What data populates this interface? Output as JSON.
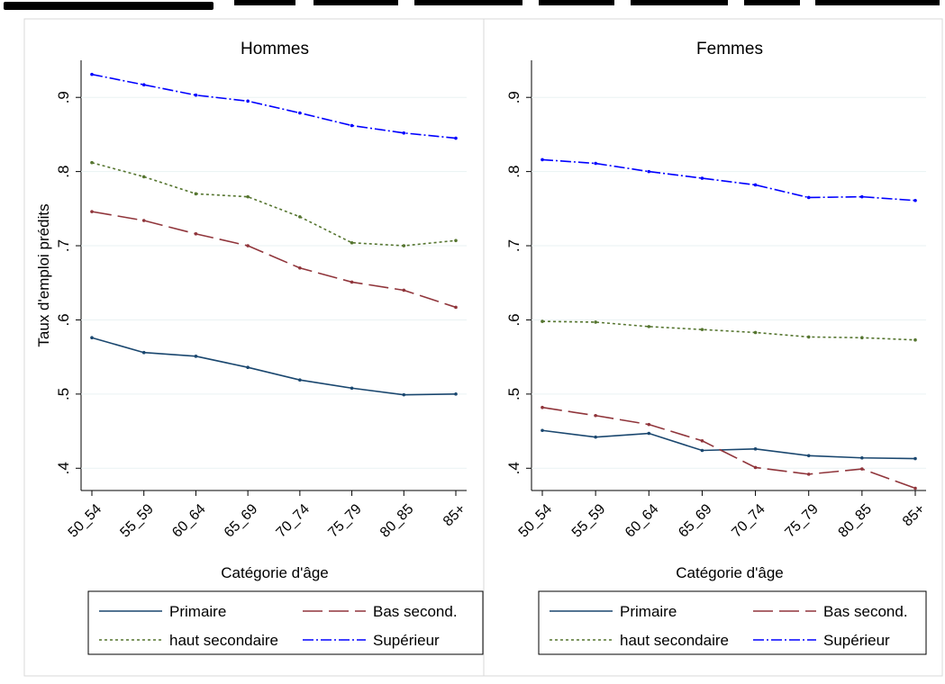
{
  "chart_data": [
    {
      "type": "line",
      "title": "Hommes",
      "xlabel": "Catégorie d'âge",
      "ylabel": "Taux d'emploi prédits",
      "categories": [
        "50_54",
        "55_59",
        "60_64",
        "65_69",
        "70_74",
        "75_79",
        "80_85",
        "85+"
      ],
      "yticks": [
        ".4",
        ".5",
        ".6",
        ".7",
        ".8",
        ".9"
      ],
      "ylim": [
        0.37,
        0.95
      ],
      "grid": true,
      "series": [
        {
          "name": "Primaire",
          "values": [
            0.576,
            0.556,
            0.551,
            0.536,
            0.519,
            0.508,
            0.499,
            0.5
          ]
        },
        {
          "name": "Bas second.",
          "values": [
            0.746,
            0.734,
            0.716,
            0.7,
            0.67,
            0.651,
            0.64,
            0.617
          ]
        },
        {
          "name": "haut secondaire",
          "values": [
            0.812,
            0.793,
            0.77,
            0.766,
            0.739,
            0.704,
            0.7,
            0.707
          ]
        },
        {
          "name": "Supérieur",
          "values": [
            0.931,
            0.917,
            0.903,
            0.895,
            0.879,
            0.862,
            0.852,
            0.845
          ]
        }
      ]
    },
    {
      "type": "line",
      "title": "Femmes",
      "xlabel": "Catégorie d'âge",
      "ylabel": "",
      "categories": [
        "50_54",
        "55_59",
        "60_64",
        "65_69",
        "70_74",
        "75_79",
        "80_85",
        "85+"
      ],
      "yticks": [
        ".4",
        ".5",
        ".6",
        ".7",
        ".8",
        ".9"
      ],
      "ylim": [
        0.37,
        0.95
      ],
      "grid": true,
      "series": [
        {
          "name": "Primaire",
          "values": [
            0.451,
            0.442,
            0.447,
            0.424,
            0.426,
            0.417,
            0.414,
            0.413
          ]
        },
        {
          "name": "Bas second.",
          "values": [
            0.482,
            0.471,
            0.459,
            0.437,
            0.401,
            0.392,
            0.399,
            0.373
          ]
        },
        {
          "name": "haut secondaire",
          "values": [
            0.598,
            0.597,
            0.591,
            0.587,
            0.583,
            0.577,
            0.576,
            0.573
          ]
        },
        {
          "name": "Supérieur",
          "values": [
            0.816,
            0.811,
            0.8,
            0.791,
            0.782,
            0.765,
            0.766,
            0.761
          ]
        }
      ]
    }
  ],
  "legend": {
    "placement": "bottom",
    "entries": [
      "Primaire",
      "Bas second.",
      "haut secondaire",
      "Supérieur"
    ]
  },
  "styles": {
    "Primaire": {
      "color": "#1a476f",
      "dash": ""
    },
    "Bas second.": {
      "color": "#90353b",
      "dash": "22,7"
    },
    "haut secondaire": {
      "color": "#55752f",
      "dash": "3,3"
    },
    "Supérieur": {
      "color": "#0000ff",
      "dash": "12,3,2,3"
    }
  },
  "colors": {
    "grid": "#eaf2f3",
    "frame": "#d9d9d9",
    "axis": "#000000"
  }
}
